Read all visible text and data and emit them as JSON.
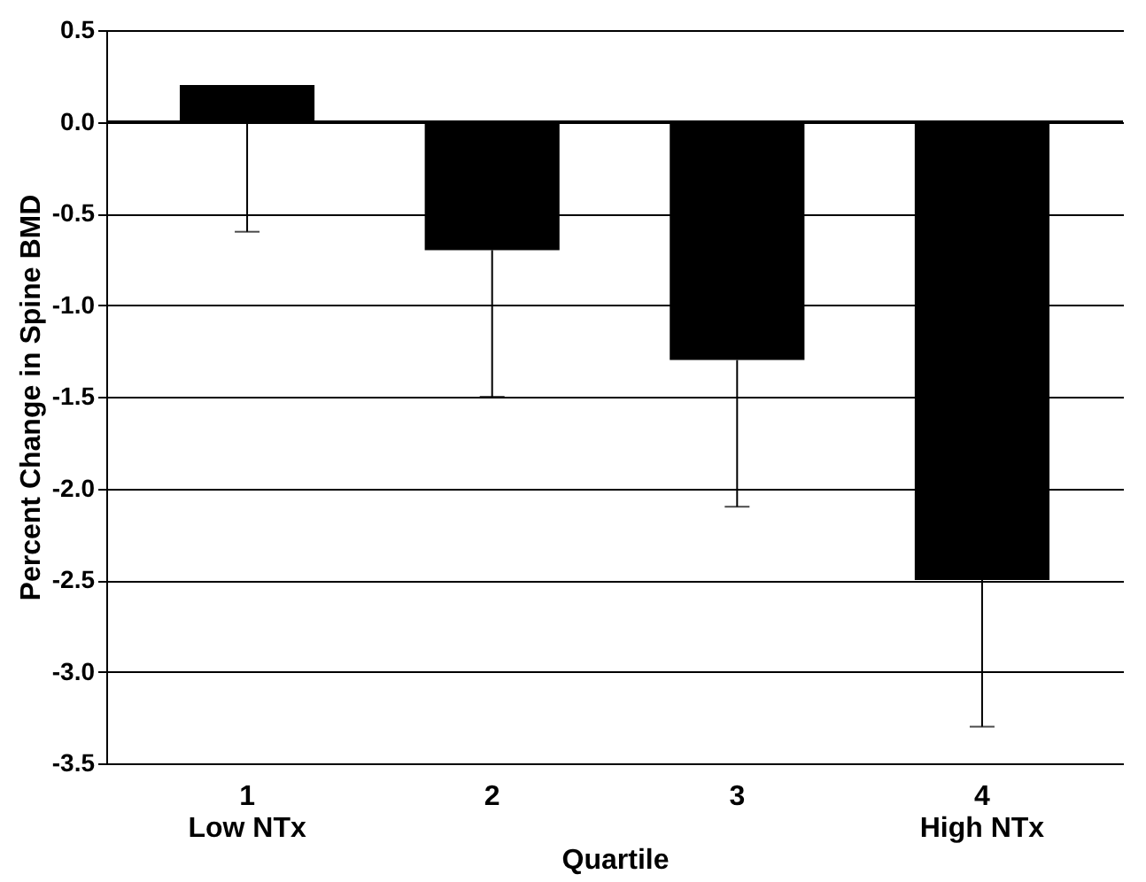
{
  "chart_data": {
    "type": "bar",
    "xlabel": "Quartile",
    "ylabel": "Percent Change in Spine BMD",
    "categories": [
      "1\nLow NTx",
      "2",
      "3",
      "4\nHigh NTx"
    ],
    "values": [
      0.2,
      -0.7,
      -1.3,
      -2.5
    ],
    "color": "#000000",
    "errors": [
      [
        -0.6,
        0.2
      ],
      [
        -1.5,
        -0.7
      ],
      [
        -2.1,
        -1.3
      ],
      [
        -3.3,
        -2.5
      ]
    ],
    "ylim": [
      -3.5,
      0.5
    ],
    "yticks": [
      {
        "value": -3.5,
        "label": "-3.5"
      },
      {
        "value": -3.0,
        "label": "-3.0"
      },
      {
        "value": -2.5,
        "label": "-2.5"
      },
      {
        "value": -2.0,
        "label": "-2.0"
      },
      {
        "value": -1.5,
        "label": "-1.5"
      },
      {
        "value": -1.0,
        "label": "-1.0"
      },
      {
        "value": -0.5,
        "label": "-0.5"
      },
      {
        "value": 0,
        "label": "0.0"
      },
      {
        "value": 0.5,
        "label": "0.5"
      }
    ],
    "grid": "y"
  }
}
